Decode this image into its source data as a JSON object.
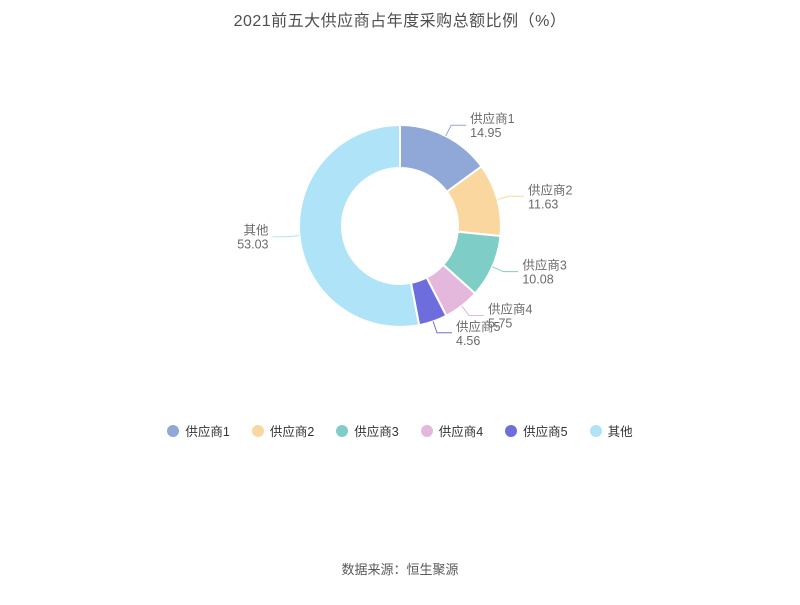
{
  "page": {
    "title": "2021前五大供应商占年度采购总额比例（%）",
    "source": "数据来源：恒生聚源"
  },
  "chart_data": {
    "type": "pie",
    "subtype": "donut",
    "title": "2021前五大供应商占年度采购总额比例（%）",
    "unit": "%",
    "categories": [
      "供应商1",
      "供应商2",
      "供应商3",
      "供应商4",
      "供应商5",
      "其他"
    ],
    "values": [
      14.95,
      11.63,
      10.08,
      5.75,
      4.56,
      53.03
    ],
    "colors": [
      "#8FA8D8",
      "#FAD79E",
      "#7ECEC7",
      "#E4B7DC",
      "#6E6DDE",
      "#AFE3F8"
    ],
    "legend": [
      "供应商1",
      "供应商2",
      "供应商3",
      "供应商4",
      "供应商5",
      "其他"
    ],
    "legend_position": "bottom",
    "start_angle": "top",
    "direction": "clockwise",
    "inner_radius_ratio": 0.57,
    "label_color": "#6B6B6B",
    "background": "#FFFFFF"
  }
}
